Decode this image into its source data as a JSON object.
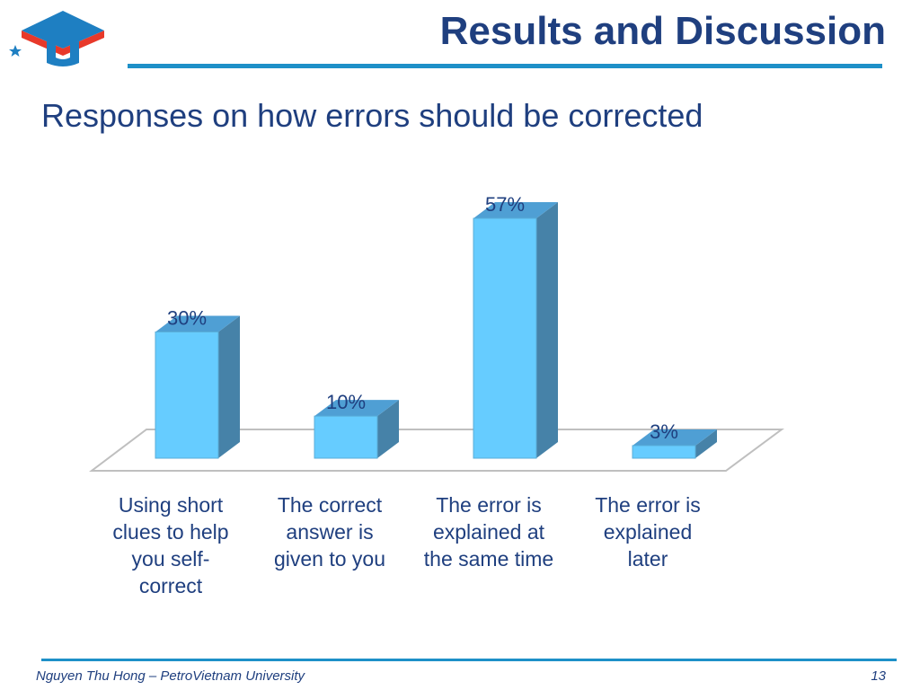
{
  "slide": {
    "title": "Results and Discussion",
    "subtitle": "Responses on how errors should be corrected"
  },
  "footer": {
    "author": "Nguyen Thu Hong – PetroVietnam University",
    "page_number": "13"
  },
  "logo": {
    "icon": "university-logo-icon",
    "colors": {
      "red": "#e8392a",
      "blue": "#1e7fc2",
      "star": "#1e7fc2"
    }
  },
  "chart_data": {
    "type": "bar",
    "title": "",
    "categories": [
      [
        "Using short",
        "clues to help",
        "you self-",
        "correct"
      ],
      [
        "The correct",
        "answer is",
        "given to you"
      ],
      [
        "The error is",
        "explained at",
        "the same time"
      ],
      [
        "The error is",
        "explained",
        "later"
      ]
    ],
    "values": [
      30,
      10,
      57,
      3
    ],
    "data_labels": [
      "30%",
      "10%",
      "57%",
      "3%"
    ],
    "ylim": [
      0,
      57
    ],
    "grid": false,
    "legend": "none",
    "colors": {
      "front": "#66ccff",
      "side": "#4682a8",
      "top": "#4f9fd4",
      "label": "#1f3f7f",
      "floor": "#bfbfbf"
    }
  }
}
